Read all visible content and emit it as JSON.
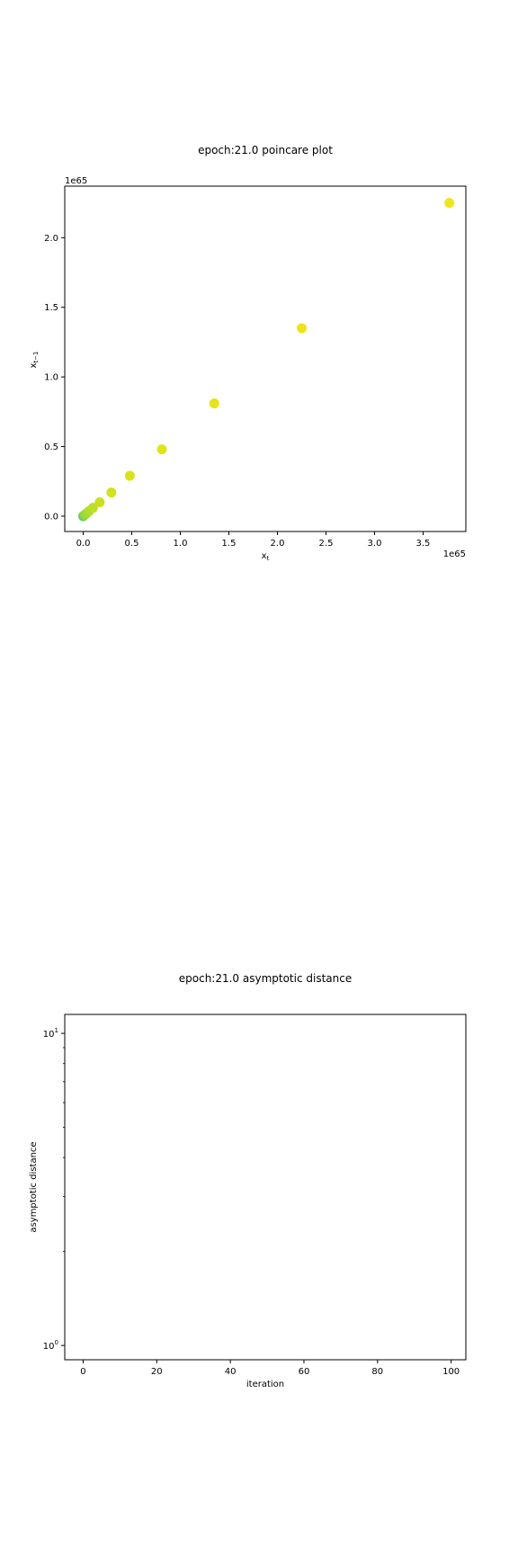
{
  "chart_data": [
    {
      "type": "scatter",
      "title": "epoch:21.0 poincare plot",
      "xlabel": "x",
      "xlabel_sub": "t",
      "ylabel": "x",
      "ylabel_sub": "t−1",
      "x_offset_label": "1e65",
      "y_offset_label": "1e65",
      "xlim": [
        -0.19,
        3.94
      ],
      "ylim": [
        -0.11,
        2.37
      ],
      "xticks": [
        0.0,
        0.5,
        1.0,
        1.5,
        2.0,
        2.5,
        3.0,
        3.5
      ],
      "xtick_labels": [
        "0.0",
        "0.5",
        "1.0",
        "1.5",
        "2.0",
        "2.5",
        "3.0",
        "3.5"
      ],
      "yticks": [
        0.0,
        0.5,
        1.0,
        1.5,
        2.0
      ],
      "ytick_labels": [
        "0.0",
        "0.5",
        "1.0",
        "1.5",
        "2.0"
      ],
      "grid": false,
      "points": [
        {
          "x": 0.0,
          "y": 0.0,
          "color": "#5ec962"
        },
        {
          "x": 0.01,
          "y": 0.006,
          "color": "#7ad151"
        },
        {
          "x": 0.02,
          "y": 0.012,
          "color": "#95d840"
        },
        {
          "x": 0.035,
          "y": 0.021,
          "color": "#a2da37"
        },
        {
          "x": 0.06,
          "y": 0.036,
          "color": "#b0dd2f"
        },
        {
          "x": 0.1,
          "y": 0.06,
          "color": "#bddf26"
        },
        {
          "x": 0.17,
          "y": 0.1,
          "color": "#c8e020"
        },
        {
          "x": 0.29,
          "y": 0.17,
          "color": "#d2e21b"
        },
        {
          "x": 0.48,
          "y": 0.29,
          "color": "#dae319"
        },
        {
          "x": 0.81,
          "y": 0.48,
          "color": "#e2e418"
        },
        {
          "x": 1.35,
          "y": 0.81,
          "color": "#e7e419"
        },
        {
          "x": 2.25,
          "y": 1.35,
          "color": "#ebe51a"
        },
        {
          "x": 3.77,
          "y": 2.25,
          "color": "#f0e51c"
        }
      ]
    },
    {
      "type": "line",
      "title": "epoch:21.0 asymptotic distance",
      "xlabel": "iteration",
      "ylabel": "asymptotic distance",
      "yscale": "log",
      "xlim": [
        -5,
        104
      ],
      "ylim": [
        0.9,
        11.5
      ],
      "xticks": [
        0,
        20,
        40,
        60,
        80,
        100
      ],
      "xtick_labels": [
        "0",
        "20",
        "40",
        "60",
        "80",
        "100"
      ],
      "yticks_major": [
        {
          "value": 1,
          "base": "10",
          "exp": "0"
        },
        {
          "value": 10,
          "base": "10",
          "exp": "1"
        }
      ],
      "yticks_minor": [
        2,
        3,
        4,
        5,
        6,
        7,
        8,
        9
      ],
      "grid": false,
      "series": []
    }
  ]
}
